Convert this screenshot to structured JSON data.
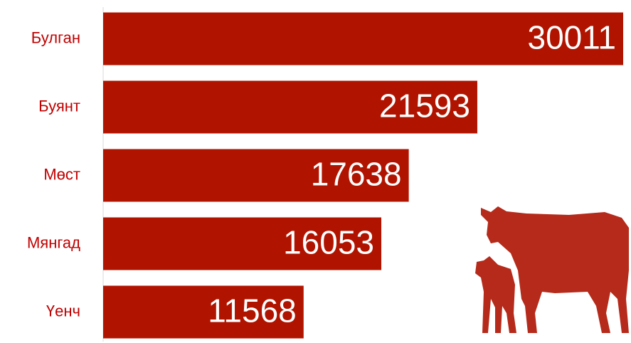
{
  "chart_data": {
    "type": "hbar",
    "categories": [
      "Булган",
      "Буянт",
      "Мөст",
      "Мянгад",
      "Үенч"
    ],
    "values": [
      30011,
      21593,
      17638,
      16053,
      11568
    ],
    "color": "#b01400"
  }
}
